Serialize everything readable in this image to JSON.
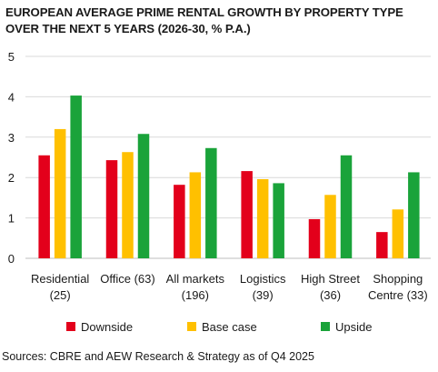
{
  "chart_data": {
    "type": "bar",
    "title": "EUROPEAN AVERAGE PRIME RENTAL GROWTH BY PROPERTY TYPE OVER THE NEXT 5 YEARS (2026-30, % P.A.)",
    "categories": [
      [
        "Residential",
        "(25)"
      ],
      [
        "Office (63)"
      ],
      [
        "All markets",
        "(196)"
      ],
      [
        "Logistics",
        "(39)"
      ],
      [
        "High Street",
        "(36)"
      ],
      [
        "Shopping",
        "Centre (33)"
      ]
    ],
    "series": [
      {
        "name": "Downside",
        "color": "#e3001b",
        "values": [
          2.55,
          2.43,
          1.82,
          2.16,
          0.97,
          0.65
        ]
      },
      {
        "name": "Base case",
        "color": "#ffc000",
        "values": [
          3.2,
          2.63,
          2.13,
          1.96,
          1.57,
          1.21
        ]
      },
      {
        "name": "Upside",
        "color": "#1aa33a",
        "values": [
          4.03,
          3.08,
          2.73,
          1.86,
          2.55,
          2.13
        ]
      }
    ],
    "yticks": [
      "0",
      "1",
      "2",
      "3",
      "4",
      "5"
    ],
    "ylim": [
      0,
      5
    ],
    "grid": true,
    "legend_position": "bottom"
  },
  "source": "Sources: CBRE and AEW Research & Strategy as of Q4 2025"
}
